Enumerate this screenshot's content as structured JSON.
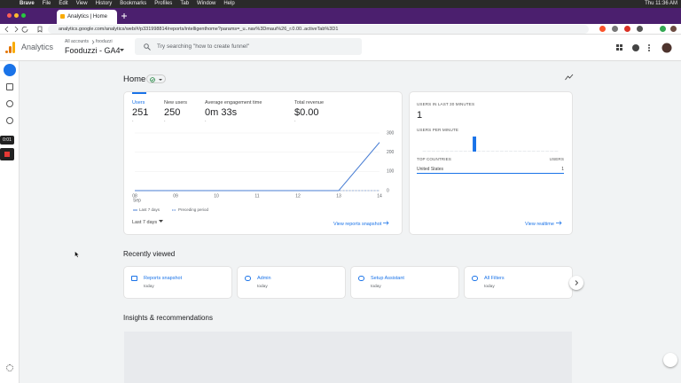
{
  "menubar": {
    "app": "Brave",
    "items": [
      "File",
      "Edit",
      "View",
      "History",
      "Bookmarks",
      "Profiles",
      "Tab",
      "Window",
      "Help"
    ],
    "clock": "Thu 11:36 AM"
  },
  "tab": {
    "title": "Analytics | Home"
  },
  "address": "analytics.google.com/analytics/web/#/p331998814/reports/intelligenthome?params=_u..nav%3Dmaui%26_r.0.00..activeTab%3D1",
  "header": {
    "product": "Analytics",
    "breadcrumb": [
      "All accounts",
      "fooduzzi"
    ],
    "property": "Fooduzzi - GA4",
    "search_placeholder": "Try searching \"how to create funnel\""
  },
  "recording": "0:01",
  "page_title": "Home",
  "overview": {
    "metrics": [
      {
        "label": "Users",
        "value": "251",
        "change": "-"
      },
      {
        "label": "New users",
        "value": "250",
        "change": "-"
      },
      {
        "label": "Average engagement time",
        "value": "0m 33s",
        "change": "-"
      },
      {
        "label": "Total revenue",
        "value": "$0.00",
        "change": "-"
      }
    ],
    "chart": {
      "type": "line",
      "categories": [
        "08",
        "09",
        "10",
        "11",
        "12",
        "13",
        "14"
      ],
      "month": "Sep",
      "series": [
        {
          "name": "Last 7 days",
          "color": "#4a7fd4",
          "values": [
            0,
            0,
            0,
            0,
            0,
            0,
            251
          ]
        },
        {
          "name": "Preceding period",
          "color": "#4a7fd4",
          "values": [
            0,
            0,
            0,
            0,
            0,
            0,
            0
          ]
        }
      ],
      "ylim": [
        0,
        300
      ],
      "yticks": [
        0,
        100,
        200,
        300
      ]
    },
    "range": "Last 7 days",
    "link": "View reports snapshot"
  },
  "realtime": {
    "heading": "USERS IN LAST 30 MINUTES",
    "value": "1",
    "per_minute_label": "USERS PER MINUTE",
    "per_minute": [
      0,
      0,
      0,
      0,
      0,
      0,
      0,
      0,
      0,
      0,
      0,
      1,
      0,
      0,
      0,
      0,
      0,
      0,
      0,
      0,
      0,
      0,
      0,
      0,
      0,
      0,
      0,
      0,
      0,
      0
    ],
    "countries_heading": "TOP COUNTRIES",
    "users_heading": "USERS",
    "countries": [
      {
        "name": "United States",
        "users": "1"
      }
    ],
    "link": "View realtime"
  },
  "recently_viewed": {
    "title": "Recently viewed",
    "items": [
      {
        "name": "Reports snapshot",
        "time": "today"
      },
      {
        "name": "Admin",
        "time": "today"
      },
      {
        "name": "Setup Assistant",
        "time": "today"
      },
      {
        "name": "All Filters",
        "time": "today"
      }
    ]
  },
  "insights_title": "Insights & recommendations"
}
